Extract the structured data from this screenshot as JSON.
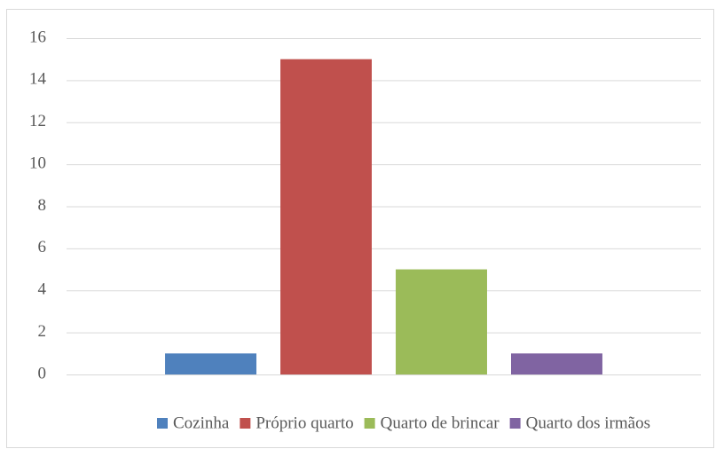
{
  "chart_data": {
    "type": "bar",
    "categories": [
      null
    ],
    "series": [
      {
        "name": "Cozinha",
        "color": "#4f81bd",
        "values": [
          1
        ]
      },
      {
        "name": "Próprio quarto",
        "color": "#c0504d",
        "values": [
          15
        ]
      },
      {
        "name": "Quarto de brincar",
        "color": "#9bbb59",
        "values": [
          5
        ]
      },
      {
        "name": "Quarto dos irmãos",
        "color": "#8064a2",
        "values": [
          1
        ]
      }
    ],
    "ylim": [
      0,
      16
    ],
    "yticks": [
      0,
      2,
      4,
      6,
      8,
      10,
      12,
      14,
      16
    ],
    "grid": true,
    "legend": "bottom"
  }
}
